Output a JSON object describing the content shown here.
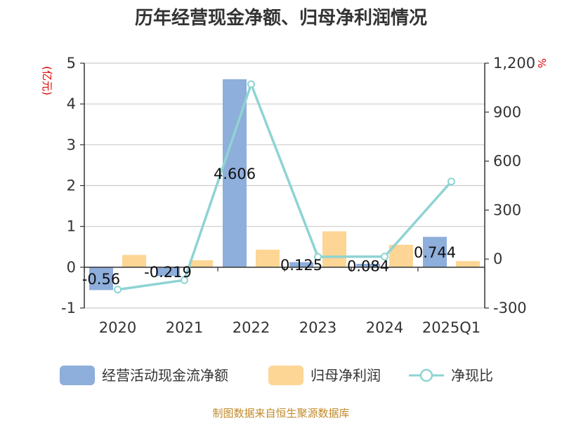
{
  "chart_data": {
    "type": "bar",
    "title": "历年经营现金净额、归母净利润情况",
    "categories": [
      "2020",
      "2021",
      "2022",
      "2023",
      "2024",
      "2025Q1"
    ],
    "series": [
      {
        "name": "经营活动现金流净额",
        "type": "bar",
        "axis": "left",
        "color": "#8eaedb",
        "values": [
          -0.56,
          -0.219,
          4.606,
          0.125,
          0.084,
          0.744
        ],
        "labels": [
          "-0.56",
          "-0.219",
          "4.606",
          "0.125",
          "0.084",
          "0.744"
        ]
      },
      {
        "name": "归母净利润",
        "type": "bar",
        "axis": "left",
        "color": "#fdd594",
        "values": [
          0.3,
          0.17,
          0.43,
          0.88,
          0.55,
          0.15
        ]
      },
      {
        "name": "净现比",
        "type": "line",
        "axis": "right",
        "color": "#8fd3d3",
        "values": [
          -187,
          -129,
          1071,
          14,
          15,
          475
        ]
      }
    ],
    "y_left": {
      "unit": "(亿元)",
      "ylim": [
        -1,
        5
      ],
      "ticks": [
        "-1",
        "0",
        "1",
        "2",
        "3",
        "4",
        "5"
      ]
    },
    "y_right": {
      "unit": "%",
      "ylim": [
        -300,
        1200
      ],
      "ticks": [
        "-300",
        "0",
        "300",
        "600",
        "900",
        "1,200"
      ]
    },
    "grid": true,
    "legend_position": "bottom"
  },
  "source": "制图数据来自恒生聚源数据库"
}
